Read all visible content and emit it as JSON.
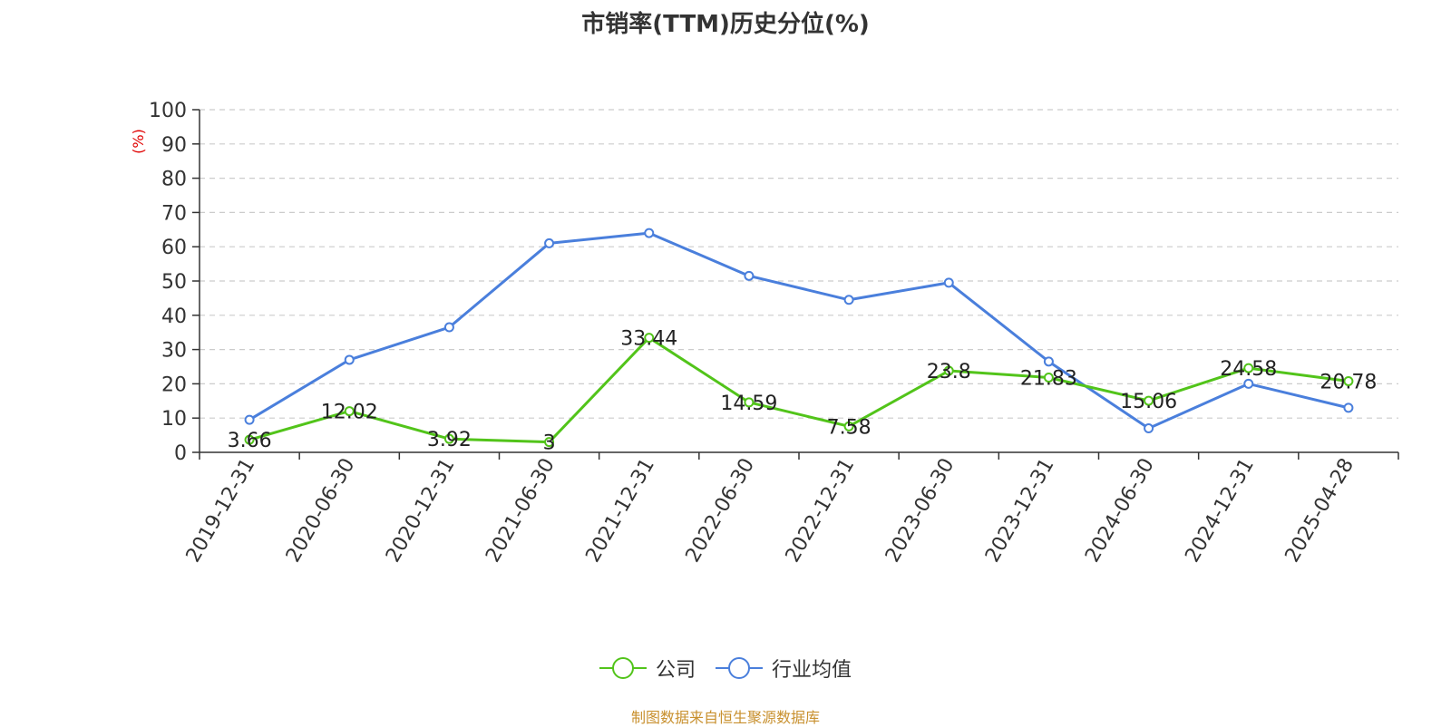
{
  "chart_data": {
    "type": "line",
    "title": "市销率(TTM)历史分位(%)",
    "ylabel": "(%)",
    "xlabel": "",
    "ylim": [
      0,
      100
    ],
    "yticks": [
      0,
      10,
      20,
      30,
      40,
      50,
      60,
      70,
      80,
      90,
      100
    ],
    "grid": true,
    "legend_position": "bottom-center",
    "categories": [
      "2019-12-31",
      "2020-06-30",
      "2020-12-31",
      "2021-06-30",
      "2021-12-31",
      "2022-06-30",
      "2022-12-31",
      "2023-06-30",
      "2023-12-31",
      "2024-06-30",
      "2024-12-31",
      "2025-04-28"
    ],
    "series": [
      {
        "name": "公司",
        "color": "#52c41a",
        "values": [
          3.66,
          12.02,
          3.92,
          3,
          33.44,
          14.59,
          7.58,
          23.8,
          21.83,
          15.06,
          24.58,
          20.78
        ],
        "labels": [
          "3.66",
          "12.02",
          "3.92",
          "3",
          "33.44",
          "14.59",
          "7.58",
          "23.8",
          "21.83",
          "15.06",
          "24.58",
          "20.78"
        ]
      },
      {
        "name": "行业均值",
        "color": "#4a7fdc",
        "values": [
          9.5,
          27,
          36.5,
          61,
          64,
          51.5,
          44.5,
          49.5,
          26.5,
          7,
          20,
          13
        ]
      }
    ]
  },
  "source_note": "制图数据来自恒生聚源数据库"
}
